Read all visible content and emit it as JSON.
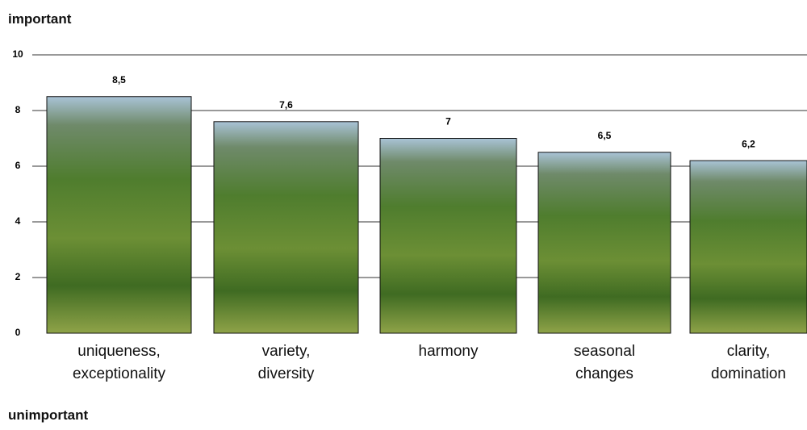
{
  "chart_data": {
    "type": "bar",
    "annotations": [
      "important",
      "unimportant"
    ],
    "categories": [
      "uniqueness, exceptionality",
      "variety, diversity",
      "harmony",
      "seasonal changes",
      "clarity, domination"
    ],
    "values": [
      8.5,
      7.6,
      7,
      6.5,
      6.2
    ],
    "value_labels": [
      "8,5",
      "7,6",
      "7",
      "6,5",
      "6,2"
    ],
    "ylim": [
      0,
      10
    ],
    "yticks": [
      0,
      2,
      4,
      6,
      8,
      10
    ],
    "grid": true
  }
}
